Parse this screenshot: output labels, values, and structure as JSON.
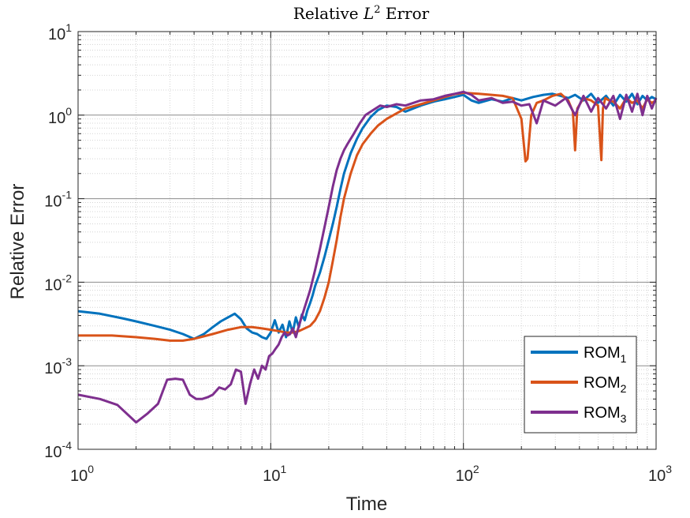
{
  "chart_data": {
    "type": "line",
    "title_prefix": "Relative ",
    "title_symbol": "L",
    "title_exponent": "2",
    "title_suffix": " Error",
    "xlabel": "Time",
    "ylabel": "Relative Error",
    "xscale": "log",
    "yscale": "log",
    "xlim": [
      1,
      1000
    ],
    "ylim": [
      0.0001,
      10
    ],
    "grid": true,
    "minor_grid": true,
    "xticks": [
      {
        "base": "10",
        "exp": "0"
      },
      {
        "base": "10",
        "exp": "1"
      },
      {
        "base": "10",
        "exp": "2"
      },
      {
        "base": "10",
        "exp": "3"
      }
    ],
    "yticks": [
      {
        "base": "10",
        "exp": "-4"
      },
      {
        "base": "10",
        "exp": "-3"
      },
      {
        "base": "10",
        "exp": "-2"
      },
      {
        "base": "10",
        "exp": "-1"
      },
      {
        "base": "10",
        "exp": "0"
      },
      {
        "base": "10",
        "exp": "1"
      }
    ],
    "legend_position": "bottom-right",
    "series": [
      {
        "name": "ROM",
        "subscript": "1",
        "color": "#0072BD",
        "x": [
          1,
          1.3,
          1.7,
          2,
          2.5,
          3,
          3.5,
          4,
          4.5,
          5,
          5.5,
          6,
          6.5,
          7,
          7.5,
          8,
          8.5,
          9,
          9.5,
          10,
          10.5,
          11,
          11.5,
          12,
          12.5,
          13,
          13.5,
          14,
          14.5,
          15,
          15.5,
          16,
          16.5,
          17,
          18,
          19,
          20,
          21,
          22,
          23,
          24,
          26,
          28,
          30,
          33,
          36,
          40,
          45,
          50,
          55,
          60,
          70,
          80,
          90,
          100,
          110,
          120,
          140,
          160,
          180,
          200,
          230,
          260,
          290,
          320,
          350,
          380,
          420,
          460,
          500,
          550,
          600,
          650,
          700,
          750,
          800,
          850,
          900,
          950,
          1000
        ],
        "y": [
          0.0045,
          0.0042,
          0.0037,
          0.0034,
          0.003,
          0.0027,
          0.0024,
          0.0021,
          0.0024,
          0.0029,
          0.0034,
          0.0038,
          0.0042,
          0.0036,
          0.0028,
          0.0025,
          0.0024,
          0.0022,
          0.0021,
          0.0025,
          0.0035,
          0.0025,
          0.0031,
          0.0022,
          0.0034,
          0.0025,
          0.0038,
          0.0029,
          0.0041,
          0.0035,
          0.0046,
          0.0056,
          0.007,
          0.009,
          0.013,
          0.02,
          0.032,
          0.05,
          0.08,
          0.13,
          0.2,
          0.35,
          0.52,
          0.7,
          0.95,
          1.15,
          1.3,
          1.25,
          1.1,
          1.2,
          1.3,
          1.45,
          1.55,
          1.65,
          1.75,
          1.5,
          1.4,
          1.55,
          1.45,
          1.6,
          1.5,
          1.65,
          1.75,
          1.8,
          1.7,
          1.6,
          1.75,
          1.5,
          1.8,
          1.4,
          1.7,
          1.3,
          1.75,
          1.45,
          1.8,
          1.35,
          1.7,
          1.5,
          1.65,
          1.55
        ]
      },
      {
        "name": "ROM",
        "subscript": "2",
        "color": "#D95319",
        "x": [
          1,
          1.5,
          2,
          2.5,
          3,
          3.5,
          4,
          5,
          6,
          7,
          8,
          9,
          10,
          11,
          12,
          13,
          14,
          15,
          16,
          17,
          18,
          19,
          20,
          21,
          22,
          23,
          24,
          26,
          28,
          30,
          33,
          36,
          40,
          45,
          50,
          60,
          70,
          80,
          90,
          100,
          120,
          140,
          160,
          180,
          200,
          210,
          215,
          225,
          240,
          260,
          290,
          320,
          350,
          370,
          380,
          390,
          420,
          460,
          500,
          520,
          530,
          545,
          570,
          600,
          650,
          700,
          750,
          800,
          850,
          900,
          950,
          1000
        ],
        "y": [
          0.0023,
          0.0023,
          0.0022,
          0.0021,
          0.002,
          0.002,
          0.0021,
          0.0024,
          0.0027,
          0.0029,
          0.0029,
          0.0028,
          0.0027,
          0.0026,
          0.0025,
          0.0025,
          0.0026,
          0.0028,
          0.003,
          0.0035,
          0.0045,
          0.0065,
          0.01,
          0.018,
          0.032,
          0.06,
          0.1,
          0.2,
          0.33,
          0.45,
          0.6,
          0.75,
          0.9,
          1.05,
          1.2,
          1.35,
          1.5,
          1.65,
          1.78,
          1.85,
          1.8,
          1.75,
          1.7,
          1.6,
          0.9,
          0.28,
          0.3,
          1.0,
          1.4,
          1.5,
          1.7,
          1.8,
          1.5,
          1.1,
          0.38,
          1.2,
          1.6,
          1.5,
          1.3,
          0.29,
          1.2,
          1.6,
          1.5,
          1.45,
          1.2,
          1.6,
          1.4,
          1.5,
          1.2,
          1.55,
          1.4,
          1.5
        ]
      },
      {
        "name": "ROM",
        "subscript": "3",
        "color": "#7E2F8E",
        "x": [
          1,
          1.3,
          1.6,
          2,
          2.3,
          2.6,
          2.9,
          3.2,
          3.5,
          3.8,
          4.1,
          4.4,
          4.7,
          5,
          5.4,
          5.8,
          6.2,
          6.6,
          7,
          7.4,
          7.8,
          8.2,
          8.6,
          9,
          9.4,
          9.8,
          10.2,
          10.6,
          11,
          11.4,
          11.8,
          12.2,
          12.6,
          13,
          13.5,
          14,
          15,
          16,
          17,
          18,
          19,
          20,
          21,
          22,
          23,
          24,
          25,
          27,
          29,
          31,
          34,
          37,
          40,
          45,
          50,
          55,
          60,
          70,
          80,
          90,
          100,
          110,
          120,
          140,
          160,
          180,
          200,
          220,
          240,
          260,
          300,
          340,
          380,
          420,
          460,
          500,
          550,
          600,
          650,
          700,
          750,
          800,
          850,
          900,
          950,
          1000
        ],
        "y": [
          0.00045,
          0.0004,
          0.00034,
          0.00021,
          0.00027,
          0.00035,
          0.00068,
          0.0007,
          0.00068,
          0.00045,
          0.0004,
          0.0004,
          0.00042,
          0.00045,
          0.00055,
          0.00052,
          0.0006,
          0.0009,
          0.00085,
          0.00035,
          0.0006,
          0.0009,
          0.0007,
          0.001,
          0.0009,
          0.0013,
          0.0014,
          0.0016,
          0.0018,
          0.0022,
          0.0025,
          0.0023,
          0.0024,
          0.0028,
          0.0022,
          0.003,
          0.005,
          0.008,
          0.014,
          0.025,
          0.045,
          0.08,
          0.14,
          0.22,
          0.3,
          0.38,
          0.45,
          0.6,
          0.8,
          1.0,
          1.15,
          1.3,
          1.25,
          1.35,
          1.3,
          1.4,
          1.5,
          1.55,
          1.7,
          1.8,
          1.9,
          1.75,
          1.5,
          1.6,
          1.4,
          1.45,
          1.3,
          1.35,
          0.8,
          1.5,
          1.3,
          1.6,
          1.0,
          1.7,
          1.1,
          1.6,
          1.2,
          1.7,
          0.9,
          1.75,
          1.1,
          1.8,
          1.0,
          1.7,
          1.2,
          1.6
        ]
      }
    ]
  }
}
